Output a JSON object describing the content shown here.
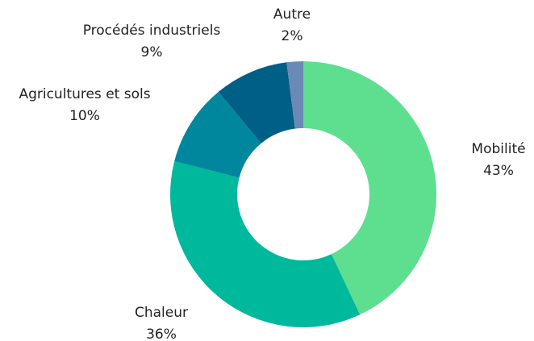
{
  "chart_data": {
    "type": "donut",
    "categories": [
      "Mobilité",
      "Chaleur",
      "Agricultures et sols",
      "Procédés industriels",
      "Autre"
    ],
    "values": [
      43,
      36,
      10,
      9,
      2
    ],
    "value_labels": [
      "43%",
      "36%",
      "10%",
      "9%",
      "2%"
    ],
    "colors": [
      "#5ddf8f",
      "#00b89c",
      "#00879d",
      "#005f87",
      "#6a89b4"
    ]
  }
}
